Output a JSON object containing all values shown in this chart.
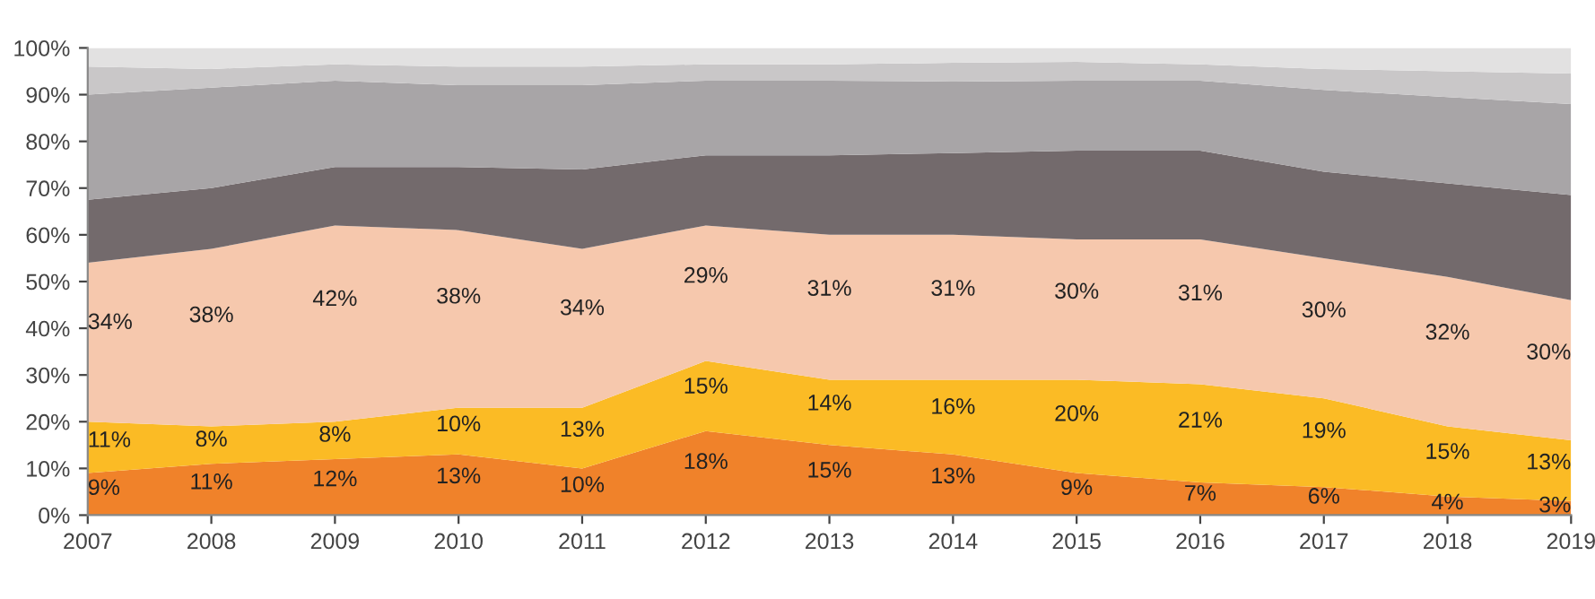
{
  "chart_data": {
    "type": "area",
    "stacked": true,
    "categories": [
      "2007",
      "2008",
      "2009",
      "2010",
      "2011",
      "2012",
      "2013",
      "2014",
      "2015",
      "2016",
      "2017",
      "2018",
      "2019"
    ],
    "series": [
      {
        "color": "#f0822a",
        "values": [
          9,
          11,
          12,
          13,
          10,
          18,
          15,
          13,
          9,
          7,
          6,
          4,
          3
        ],
        "value_labels": [
          "9%",
          "11%",
          "12%",
          "13%",
          "10%",
          "18%",
          "15%",
          "13%",
          "9%",
          "7%",
          "6%",
          "4%",
          "3%"
        ]
      },
      {
        "color": "#fbbb25",
        "values": [
          11,
          8,
          8,
          10,
          13,
          15,
          14,
          16,
          20,
          21,
          19,
          15,
          13
        ],
        "value_labels": [
          "11%",
          "8%",
          "8%",
          "10%",
          "13%",
          "15%",
          "14%",
          "16%",
          "20%",
          "21%",
          "19%",
          "15%",
          "13%"
        ]
      },
      {
        "color": "#f6c8ad",
        "values": [
          34,
          38,
          42,
          38,
          34,
          29,
          31,
          31,
          30,
          31,
          30,
          32,
          30
        ],
        "value_labels": [
          "34%",
          "38%",
          "42%",
          "38%",
          "34%",
          "29%",
          "31%",
          "31%",
          "30%",
          "31%",
          "30%",
          "32%",
          "30%"
        ]
      },
      {
        "color": "#736a6c",
        "values": [
          13.5,
          13,
          12.5,
          13.5,
          17,
          15,
          17,
          17.5,
          19,
          19,
          18.5,
          20,
          22.5
        ]
      },
      {
        "color": "#a8a5a7",
        "values": [
          22.5,
          21.5,
          18.5,
          17.5,
          18,
          16,
          16,
          15.3,
          15,
          15,
          17.5,
          18.5,
          19.5
        ]
      },
      {
        "color": "#c9c7c8",
        "values": [
          6,
          4,
          3.5,
          4,
          4,
          3.5,
          3.5,
          4,
          4,
          3.5,
          4.5,
          5.5,
          6.5
        ]
      },
      {
        "color": "#e2e1e1",
        "values": [
          4,
          4.5,
          3.5,
          4,
          4,
          3.5,
          3.5,
          3.2,
          3,
          3.5,
          4.5,
          5,
          5.5
        ]
      }
    ],
    "ylim": [
      0,
      100
    ],
    "yticks": [
      {
        "value": 0,
        "label": "0%"
      },
      {
        "value": 10,
        "label": "10%"
      },
      {
        "value": 20,
        "label": "20%"
      },
      {
        "value": 30,
        "label": "30%"
      },
      {
        "value": 40,
        "label": "40%"
      },
      {
        "value": 50,
        "label": "50%"
      },
      {
        "value": 60,
        "label": "60%"
      },
      {
        "value": 70,
        "label": "70%"
      },
      {
        "value": 80,
        "label": "80%"
      },
      {
        "value": 90,
        "label": "90%"
      },
      {
        "value": 100,
        "label": "100%"
      }
    ],
    "grid": false
  }
}
